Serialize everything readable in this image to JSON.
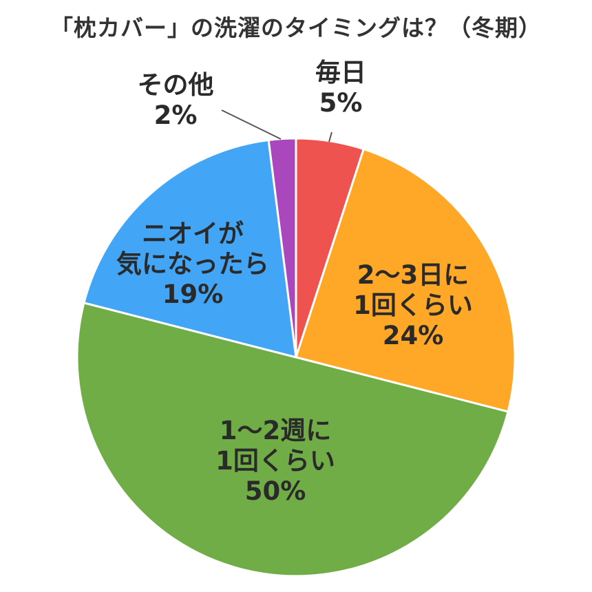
{
  "chart_data": {
    "type": "pie",
    "title": "「枕カバー」の洗濯のタイミングは？（冬期）",
    "slices": [
      {
        "label_lines": [
          "毎日"
        ],
        "value": 5,
        "value_label": "5%",
        "color": "#ef5350"
      },
      {
        "label_lines": [
          "2〜3日に",
          "1回くらい"
        ],
        "value": 24,
        "value_label": "24%",
        "color": "#ffa726"
      },
      {
        "label_lines": [
          "1〜2週に",
          "1回くらい"
        ],
        "value": 50,
        "value_label": "50%",
        "color": "#70ad47"
      },
      {
        "label_lines": [
          "ニオイが",
          "気になったら"
        ],
        "value": 19,
        "value_label": "19%",
        "color": "#42a5f5"
      },
      {
        "label_lines": [
          "その他"
        ],
        "value": 2,
        "value_label": "2%",
        "color": "#ab47bc"
      }
    ]
  }
}
